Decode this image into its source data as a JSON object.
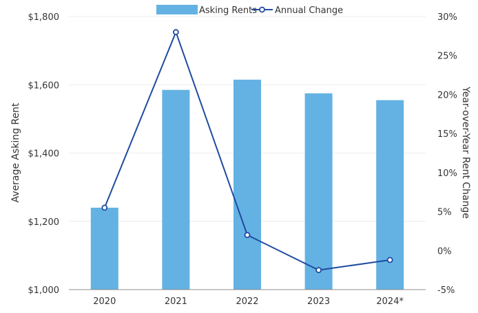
{
  "chart_data": {
    "type": "bar",
    "categories": [
      "2020",
      "2021",
      "2022",
      "2023",
      "2024*"
    ],
    "series": [
      {
        "name": "Asking Rents",
        "type": "bar",
        "axis": "left",
        "values": [
          1240,
          1585,
          1615,
          1575,
          1555
        ]
      },
      {
        "name": "Annual Change",
        "type": "line",
        "axis": "right",
        "values": [
          5.5,
          28.0,
          2.0,
          -2.5,
          -1.2
        ]
      }
    ],
    "ylabel": "Average Asking Rent",
    "y2label": "Year-over-Year Rent Change",
    "ylim": [
      1000,
      1800
    ],
    "y2lim": [
      -5,
      30
    ],
    "yticks": [
      "$1,000",
      "$1,200",
      "$1,400",
      "$1,600",
      "$1,800"
    ],
    "y2ticks": [
      "-5%",
      "0%",
      "5%",
      "10%",
      "15%",
      "20%",
      "25%",
      "30%"
    ],
    "grid": true,
    "legend_position": "top-center",
    "colors": {
      "bar": "#63b2e3",
      "line": "#1f4aa0",
      "grid": "#ececec",
      "axis": "#8c8c8c"
    }
  }
}
